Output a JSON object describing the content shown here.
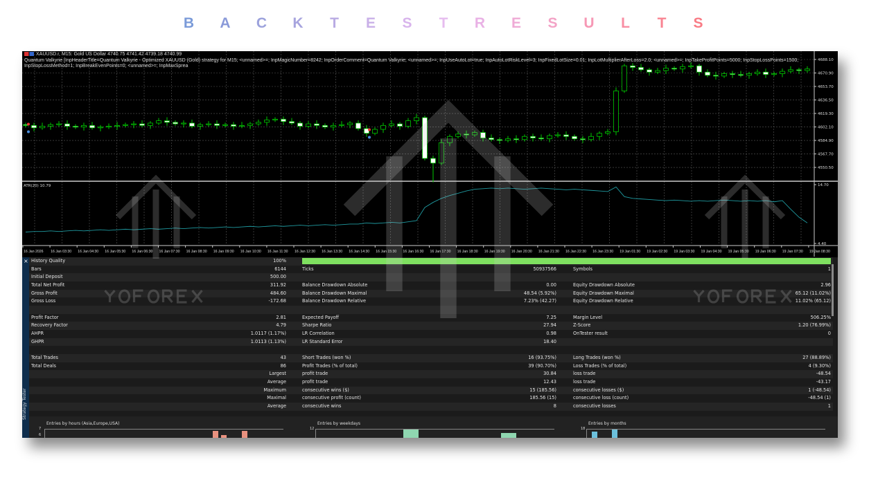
{
  "page_title": "BACKTESTRESULTS",
  "title_colors": [
    "#7b9bd9",
    "#8a9ad9",
    "#9ca2dc",
    "#a7a4de",
    "#b9abe3",
    "#c9b0e8",
    "#d8b4ec",
    "#e6bcef",
    "#e9b1e5",
    "#efabd6",
    "#f3a3c6",
    "#f698b5",
    "#f88ea3",
    "#f98492",
    "#f97b85"
  ],
  "chart": {
    "symbol_line": "XAUUSD.r, M15:  Gold US Dollar  4740.75 4741.42 4739.18 4740.99",
    "params_line": "Quantum Valkyrie [InpHeaderTitle=Quantum Valkyrie - Optimized XAUUSD (Gold) strategy for M15; <unnamed>=; InpMagicNumber=8242; InpOrderComment=Quantum Valkyrie; <unnamed>=; InpUseAutoLot=true; InpAutoLotRiskLevel=3; InpFixedLotSize=0.01; InpLotMultiplierAfterLoss=2.0; <unnamed>=; InpTakeProfitPoints=5000; InpStopLossPoints=1500; InpStopLossMethod=1; InpBreakEvenPoints=0; <unnamed>=; InpMaxSprea",
    "price_labels": [
      "4688.10",
      "4670.90",
      "4653.70",
      "4636.50",
      "4619.30",
      "4602.10",
      "4584.90",
      "4567.70",
      "4550.50"
    ],
    "atr_label": "ATR(20) 10.79",
    "atr_labels": [
      "14.70",
      "4.40"
    ],
    "time_labels": [
      "16 Jan 2026",
      "16 Jan 03:30",
      "16 Jan 04:30",
      "16 Jan 05:30",
      "16 Jan 06:30",
      "16 Jan 07:30",
      "16 Jan 08:30",
      "16 Jan 09:30",
      "16 Jan 10:30",
      "16 Jan 11:30",
      "16 Jan 12:30",
      "16 Jan 13:30",
      "16 Jan 14:30",
      "16 Jan 15:30",
      "16 Jan 16:30",
      "16 Jan 17:30",
      "16 Jan 18:30",
      "16 Jan 19:30",
      "16 Jan 20:30",
      "16 Jan 21:30",
      "16 Jan 22:30",
      "16 Jan 23:30",
      "19 Jan 01:30",
      "19 Jan 02:30",
      "19 Jan 03:30",
      "19 Jan 04:30",
      "19 Jan 05:30",
      "19 Jan 06:30",
      "19 Jan 07:30",
      "19 Jan 08:30"
    ],
    "closes": [
      4604,
      4601,
      4603,
      4605,
      4606,
      4603,
      4602,
      4604,
      4601,
      4602,
      4603,
      4604,
      4605,
      4606,
      4604,
      4607,
      4610,
      4608,
      4606,
      4607,
      4603,
      4605,
      4606,
      4604,
      4605,
      4603,
      4604,
      4606,
      4608,
      4611,
      4612,
      4609,
      4607,
      4603,
      4606,
      4604,
      4602,
      4604,
      4605,
      4607,
      4600,
      4594,
      4599,
      4604,
      4606,
      4603,
      4610,
      4614,
      4562,
      4556,
      4582,
      4590,
      4593,
      4592,
      4595,
      4588,
      4586,
      4585,
      4587,
      4586,
      4590,
      4588,
      4587,
      4591,
      4592,
      4590,
      4587,
      4586,
      4590,
      4594,
      4596,
      4648,
      4680,
      4678,
      4675,
      4672,
      4674,
      4677,
      4676,
      4679,
      4680,
      4672,
      4668,
      4667,
      4670,
      4669,
      4668,
      4670,
      4672,
      4669,
      4670,
      4673,
      4675,
      4674,
      4676
    ],
    "atr": [
      6.4,
      6.5,
      6.5,
      6.6,
      6.5,
      6.6,
      6.7,
      6.6,
      6.7,
      6.8,
      6.7,
      6.8,
      6.9,
      6.8,
      6.9,
      7.0,
      6.9,
      7.0,
      7.1,
      7.0,
      7.1,
      7.2,
      7.1,
      7.2,
      7.3,
      7.2,
      7.3,
      7.4,
      7.3,
      7.4,
      7.5,
      7.4,
      7.5,
      7.6,
      7.5,
      7.6,
      7.7,
      7.6,
      7.7,
      7.8,
      7.8,
      8.0,
      7.9,
      8.0,
      8.1,
      8.0,
      8.2,
      8.4,
      10.7,
      11.6,
      12.3,
      12.8,
      13.2,
      13.6,
      13.9,
      14.0,
      14.1,
      14.0,
      14.1,
      14.0,
      13.9,
      14.0,
      14.1,
      14.0,
      13.9,
      13.8,
      13.9,
      13.8,
      13.7,
      13.6,
      13.5,
      14.3,
      12.6,
      12.3,
      12.2,
      12.1,
      12.0,
      11.9,
      12.0,
      11.9,
      11.8,
      11.9,
      11.8,
      11.9,
      12.0,
      11.9,
      11.8,
      11.9,
      11.8,
      11.9,
      11.7,
      11.9,
      10.4,
      9.0,
      8.0
    ],
    "bull_color": "#00c800",
    "bear_body": "#ffffff"
  },
  "results": {
    "close_label": "×",
    "side_label": "Strategy Tester",
    "quality_bar_color": "#7fe060",
    "quality_fraction": 1.0,
    "rows": [
      [
        "History Quality",
        "100%",
        "",
        "",
        "",
        ""
      ],
      [
        "Bars",
        "6144",
        "Ticks",
        "50937566",
        "Symbols",
        "1"
      ],
      [
        "Initial Deposit",
        "500.00",
        "",
        "",
        "",
        ""
      ],
      [
        "Total Net Profit",
        "311.92",
        "Balance Drawdown Absolute",
        "0.00",
        "Equity Drawdown Absolute",
        "2.96"
      ],
      [
        "Gross Profit",
        "484.60",
        "Balance Drawdown Maximal",
        "48.54 (5.92%)",
        "Equity Drawdown Maximal",
        "65.12 (11.02%)"
      ],
      [
        "Gross Loss",
        "-172.68",
        "Balance Drawdown Relative",
        "7.23% (42.27)",
        "Equity Drawdown Relative",
        "11.02% (65.12)"
      ],
      [
        "",
        "",
        "",
        "",
        "",
        ""
      ],
      [
        "Profit Factor",
        "2.81",
        "Expected Payoff",
        "7.25",
        "Margin Level",
        "506.25%"
      ],
      [
        "Recovery Factor",
        "4.79",
        "Sharpe Ratio",
        "27.94",
        "Z-Score",
        "1.20 (76.99%)"
      ],
      [
        "AHPR",
        "1.0117 (1.17%)",
        "LR Correlation",
        "0.98",
        "OnTester result",
        "0"
      ],
      [
        "GHPR",
        "1.0113 (1.13%)",
        "LR Standard Error",
        "18.40",
        "",
        ""
      ],
      [
        "",
        "",
        "",
        "",
        "",
        ""
      ],
      [
        "Total Trades",
        "43",
        "Short Trades (won %)",
        "16 (93.75%)",
        "Long Trades (won %)",
        "27 (88.89%)"
      ],
      [
        "Total Deals",
        "86",
        "Profit Trades (% of total)",
        "39 (90.70%)",
        "Loss Trades (% of total)",
        "4 (9.30%)"
      ],
      [
        "",
        "Largest",
        "profit trade",
        "30.84",
        "loss trade",
        "-48.54"
      ],
      [
        "",
        "Average",
        "profit trade",
        "12.43",
        "loss trade",
        "-43.17"
      ],
      [
        "",
        "Maximum",
        "consecutive wins ($)",
        "15 (185.56)",
        "consecutive losses ($)",
        "1 (-48.54)"
      ],
      [
        "",
        "Maximal",
        "consecutive profit (count)",
        "185.56 (15)",
        "consecutive loss (count)",
        "-48.54 (1)"
      ],
      [
        "",
        "Average",
        "consecutive wins",
        "8",
        "consecutive losses",
        "1"
      ]
    ]
  },
  "mini_charts": [
    {
      "title": "Entries by hours (Asia,Europe,USA)",
      "ticks": [
        "7",
        "6"
      ],
      "color": "#e8917f"
    },
    {
      "title": "Entries by weekdays",
      "ticks": [
        "12"
      ],
      "color": "#8fd6b0"
    },
    {
      "title": "Entries by months",
      "ticks": [
        "18"
      ],
      "color": "#6cc0dc"
    }
  ],
  "watermark": "YOFOREX"
}
